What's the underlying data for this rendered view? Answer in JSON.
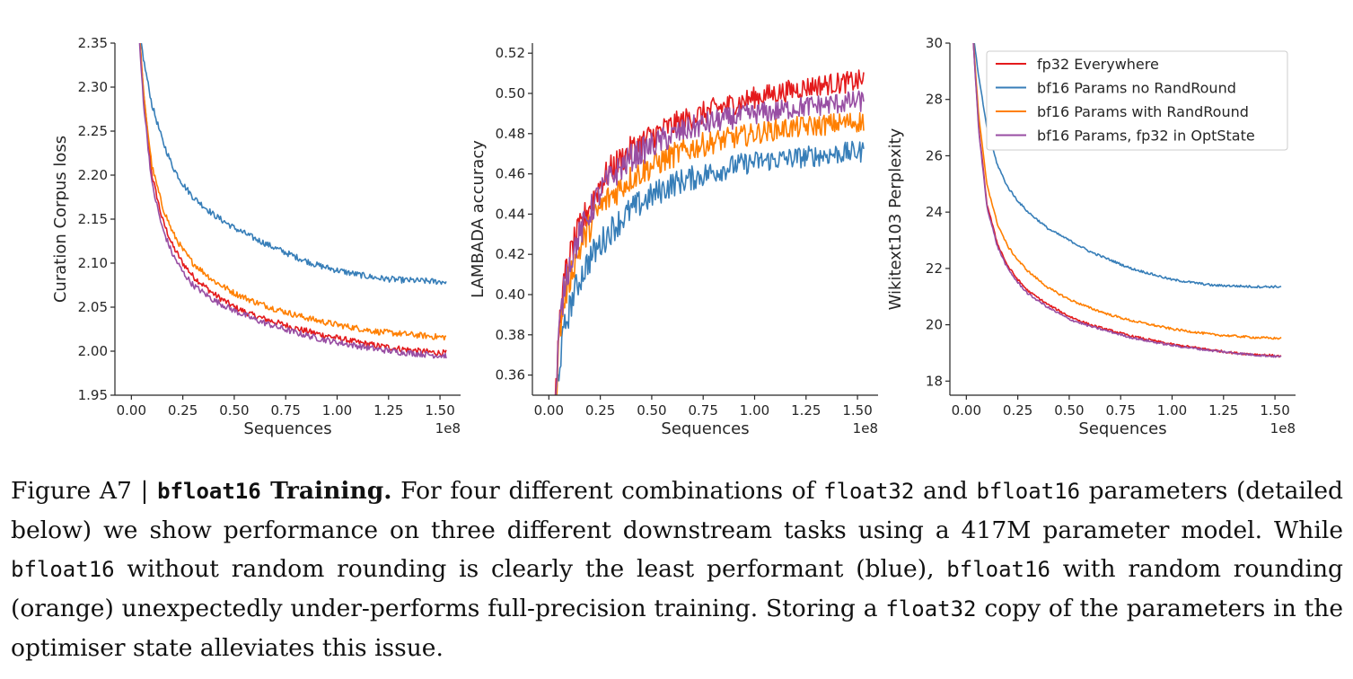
{
  "chart_data": [
    {
      "type": "line",
      "xlabel": "Sequences",
      "ylabel": "Curation Corpus loss",
      "x_offset_label": "1e8",
      "xlim": [
        -0.08,
        1.6
      ],
      "ylim": [
        1.95,
        2.35
      ],
      "xticks": [
        "0.00",
        "0.25",
        "0.50",
        "0.75",
        "1.00",
        "1.25",
        "1.50"
      ],
      "yticks": [
        "1.95",
        "2.00",
        "2.05",
        "2.10",
        "2.15",
        "2.20",
        "2.25",
        "2.30",
        "2.35"
      ],
      "grid": false,
      "series": [
        {
          "name": "fp32 Everywhere",
          "color": "#e41a1c",
          "x": [
            0.03,
            0.06,
            0.1,
            0.15,
            0.2,
            0.25,
            0.3,
            0.4,
            0.5,
            0.6,
            0.7,
            0.8,
            0.9,
            1.0,
            1.1,
            1.2,
            1.3,
            1.4,
            1.5,
            1.53
          ],
          "y": [
            2.39,
            2.29,
            2.2,
            2.15,
            2.12,
            2.1,
            2.085,
            2.065,
            2.05,
            2.04,
            2.033,
            2.026,
            2.02,
            2.015,
            2.01,
            2.006,
            2.003,
            2.0,
            1.998,
            1.998
          ]
        },
        {
          "name": "bf16 Params no RandRound",
          "color": "#377eb8",
          "x": [
            0.03,
            0.06,
            0.1,
            0.15,
            0.2,
            0.25,
            0.3,
            0.4,
            0.5,
            0.6,
            0.7,
            0.8,
            0.9,
            1.0,
            1.1,
            1.2,
            1.3,
            1.4,
            1.5,
            1.53
          ],
          "y": [
            2.38,
            2.33,
            2.28,
            2.24,
            2.21,
            2.19,
            2.175,
            2.155,
            2.14,
            2.128,
            2.117,
            2.107,
            2.098,
            2.092,
            2.087,
            2.083,
            2.081,
            2.08,
            2.079,
            2.079
          ]
        },
        {
          "name": "bf16 Params with RandRound",
          "color": "#ff7f00",
          "x": [
            0.03,
            0.06,
            0.1,
            0.15,
            0.2,
            0.25,
            0.3,
            0.4,
            0.5,
            0.6,
            0.7,
            0.8,
            0.9,
            1.0,
            1.1,
            1.2,
            1.3,
            1.4,
            1.5,
            1.53
          ],
          "y": [
            2.39,
            2.29,
            2.21,
            2.165,
            2.135,
            2.115,
            2.1,
            2.08,
            2.066,
            2.056,
            2.048,
            2.041,
            2.035,
            2.03,
            2.026,
            2.022,
            2.02,
            2.018,
            2.016,
            2.016
          ]
        },
        {
          "name": "bf16 Params, fp32 in OptState",
          "color": "#984ea3",
          "x": [
            0.03,
            0.06,
            0.1,
            0.15,
            0.2,
            0.25,
            0.3,
            0.4,
            0.5,
            0.6,
            0.7,
            0.8,
            0.9,
            1.0,
            1.1,
            1.2,
            1.3,
            1.4,
            1.5,
            1.53
          ],
          "y": [
            2.38,
            2.28,
            2.19,
            2.14,
            2.11,
            2.09,
            2.075,
            2.058,
            2.046,
            2.036,
            2.028,
            2.021,
            2.015,
            2.01,
            2.006,
            2.002,
            1.999,
            1.997,
            1.995,
            1.995
          ]
        }
      ]
    },
    {
      "type": "line",
      "xlabel": "Sequences",
      "ylabel": "LAMBADA accuracy",
      "x_offset_label": "1e8",
      "xlim": [
        -0.08,
        1.6
      ],
      "ylim": [
        0.35,
        0.525
      ],
      "xticks": [
        "0.00",
        "0.25",
        "0.50",
        "0.75",
        "1.00",
        "1.25",
        "1.50"
      ],
      "yticks": [
        "0.36",
        "0.38",
        "0.40",
        "0.42",
        "0.44",
        "0.46",
        "0.48",
        "0.50",
        "0.52"
      ],
      "grid": false,
      "series": [
        {
          "name": "fp32 Everywhere",
          "color": "#e41a1c",
          "x": [
            0.03,
            0.05,
            0.08,
            0.12,
            0.16,
            0.2,
            0.25,
            0.3,
            0.4,
            0.5,
            0.6,
            0.7,
            0.8,
            0.9,
            1.0,
            1.1,
            1.2,
            1.3,
            1.4,
            1.5,
            1.53
          ],
          "y": [
            0.34,
            0.385,
            0.41,
            0.425,
            0.435,
            0.445,
            0.455,
            0.462,
            0.472,
            0.479,
            0.484,
            0.488,
            0.492,
            0.495,
            0.498,
            0.5,
            0.502,
            0.504,
            0.505,
            0.506,
            0.507
          ]
        },
        {
          "name": "bf16 Params no RandRound",
          "color": "#377eb8",
          "x": [
            0.03,
            0.05,
            0.08,
            0.12,
            0.16,
            0.2,
            0.25,
            0.3,
            0.4,
            0.5,
            0.6,
            0.7,
            0.8,
            0.9,
            1.0,
            1.1,
            1.2,
            1.3,
            1.4,
            1.5,
            1.53
          ],
          "y": [
            0.34,
            0.365,
            0.385,
            0.4,
            0.41,
            0.418,
            0.425,
            0.432,
            0.442,
            0.449,
            0.455,
            0.458,
            0.461,
            0.464,
            0.466,
            0.467,
            0.468,
            0.469,
            0.47,
            0.471,
            0.471
          ]
        },
        {
          "name": "bf16 Params with RandRound",
          "color": "#ff7f00",
          "x": [
            0.03,
            0.05,
            0.08,
            0.12,
            0.16,
            0.2,
            0.25,
            0.3,
            0.4,
            0.5,
            0.6,
            0.7,
            0.8,
            0.9,
            1.0,
            1.1,
            1.2,
            1.3,
            1.4,
            1.5,
            1.53
          ],
          "y": [
            0.34,
            0.38,
            0.4,
            0.415,
            0.425,
            0.434,
            0.443,
            0.449,
            0.458,
            0.464,
            0.469,
            0.473,
            0.476,
            0.478,
            0.48,
            0.482,
            0.483,
            0.484,
            0.485,
            0.486,
            0.486
          ]
        },
        {
          "name": "bf16 Params, fp32 in OptState",
          "color": "#984ea3",
          "x": [
            0.03,
            0.05,
            0.08,
            0.12,
            0.16,
            0.2,
            0.25,
            0.3,
            0.4,
            0.5,
            0.6,
            0.7,
            0.8,
            0.9,
            1.0,
            1.1,
            1.2,
            1.3,
            1.4,
            1.5,
            1.53
          ],
          "y": [
            0.34,
            0.382,
            0.408,
            0.422,
            0.432,
            0.441,
            0.451,
            0.458,
            0.468,
            0.474,
            0.479,
            0.483,
            0.486,
            0.488,
            0.49,
            0.491,
            0.493,
            0.494,
            0.495,
            0.496,
            0.496
          ]
        }
      ]
    },
    {
      "type": "line",
      "xlabel": "Sequences",
      "ylabel": "Wikitext103 Perplexity",
      "x_offset_label": "1e8",
      "xlim": [
        -0.08,
        1.6
      ],
      "ylim": [
        17.5,
        30
      ],
      "xticks": [
        "0.00",
        "0.25",
        "0.50",
        "0.75",
        "1.00",
        "1.25",
        "1.50"
      ],
      "yticks": [
        "18",
        "20",
        "22",
        "24",
        "26",
        "28",
        "30"
      ],
      "grid": false,
      "legend_position": "upper right",
      "series": [
        {
          "name": "fp32 Everywhere",
          "color": "#e41a1c",
          "x": [
            0.03,
            0.06,
            0.1,
            0.15,
            0.2,
            0.25,
            0.3,
            0.4,
            0.5,
            0.6,
            0.7,
            0.8,
            0.9,
            1.0,
            1.1,
            1.2,
            1.3,
            1.4,
            1.5,
            1.53
          ],
          "y": [
            30.5,
            27.0,
            24.3,
            22.9,
            22.1,
            21.6,
            21.2,
            20.7,
            20.3,
            20.0,
            19.8,
            19.6,
            19.45,
            19.3,
            19.2,
            19.1,
            19.0,
            18.95,
            18.9,
            18.88
          ]
        },
        {
          "name": "bf16 Params no RandRound",
          "color": "#377eb8",
          "x": [
            0.03,
            0.06,
            0.1,
            0.15,
            0.2,
            0.25,
            0.3,
            0.4,
            0.5,
            0.6,
            0.7,
            0.8,
            0.9,
            1.0,
            1.1,
            1.2,
            1.3,
            1.4,
            1.5,
            1.53
          ],
          "y": [
            30.5,
            28.8,
            27.0,
            25.7,
            24.9,
            24.4,
            24.0,
            23.4,
            23.0,
            22.6,
            22.3,
            22.0,
            21.8,
            21.6,
            21.5,
            21.4,
            21.38,
            21.35,
            21.35,
            21.35
          ]
        },
        {
          "name": "bf16 Params with RandRound",
          "color": "#ff7f00",
          "x": [
            0.03,
            0.06,
            0.1,
            0.15,
            0.2,
            0.25,
            0.3,
            0.4,
            0.5,
            0.6,
            0.7,
            0.8,
            0.9,
            1.0,
            1.1,
            1.2,
            1.3,
            1.4,
            1.5,
            1.53
          ],
          "y": [
            30.5,
            27.4,
            25.0,
            23.6,
            22.8,
            22.3,
            21.9,
            21.3,
            20.9,
            20.6,
            20.35,
            20.15,
            20.0,
            19.85,
            19.75,
            19.65,
            19.6,
            19.55,
            19.52,
            19.52
          ]
        },
        {
          "name": "bf16 Params, fp32 in OptState",
          "color": "#984ea3",
          "x": [
            0.03,
            0.06,
            0.1,
            0.15,
            0.2,
            0.25,
            0.3,
            0.4,
            0.5,
            0.6,
            0.7,
            0.8,
            0.9,
            1.0,
            1.1,
            1.2,
            1.3,
            1.4,
            1.5,
            1.53
          ],
          "y": [
            30.5,
            26.9,
            24.2,
            22.8,
            22.0,
            21.5,
            21.1,
            20.6,
            20.2,
            19.95,
            19.75,
            19.55,
            19.4,
            19.27,
            19.17,
            19.08,
            19.0,
            18.93,
            18.88,
            18.86
          ]
        }
      ]
    }
  ],
  "caption": {
    "figure_label": "Figure A7 | ",
    "title_mono": "bfloat16",
    "title_rest": " Training.",
    "t1": " For four different combinations of ",
    "m1": "float32",
    "t2": " and ",
    "m2": "bfloat16",
    "t3": " parameters (detailed below) we show performance on three different downstream tasks using a 417M parameter model. While ",
    "m3": "bfloat16",
    "t4": " without random rounding is clearly the least performant (blue), ",
    "m4": "bfloat16",
    "t5": " with random rounding (orange) unexpectedly under-performs full-precision training. Storing a ",
    "m5": "float32",
    "t6": " copy of the parameters in the optimiser state alleviates this issue."
  }
}
